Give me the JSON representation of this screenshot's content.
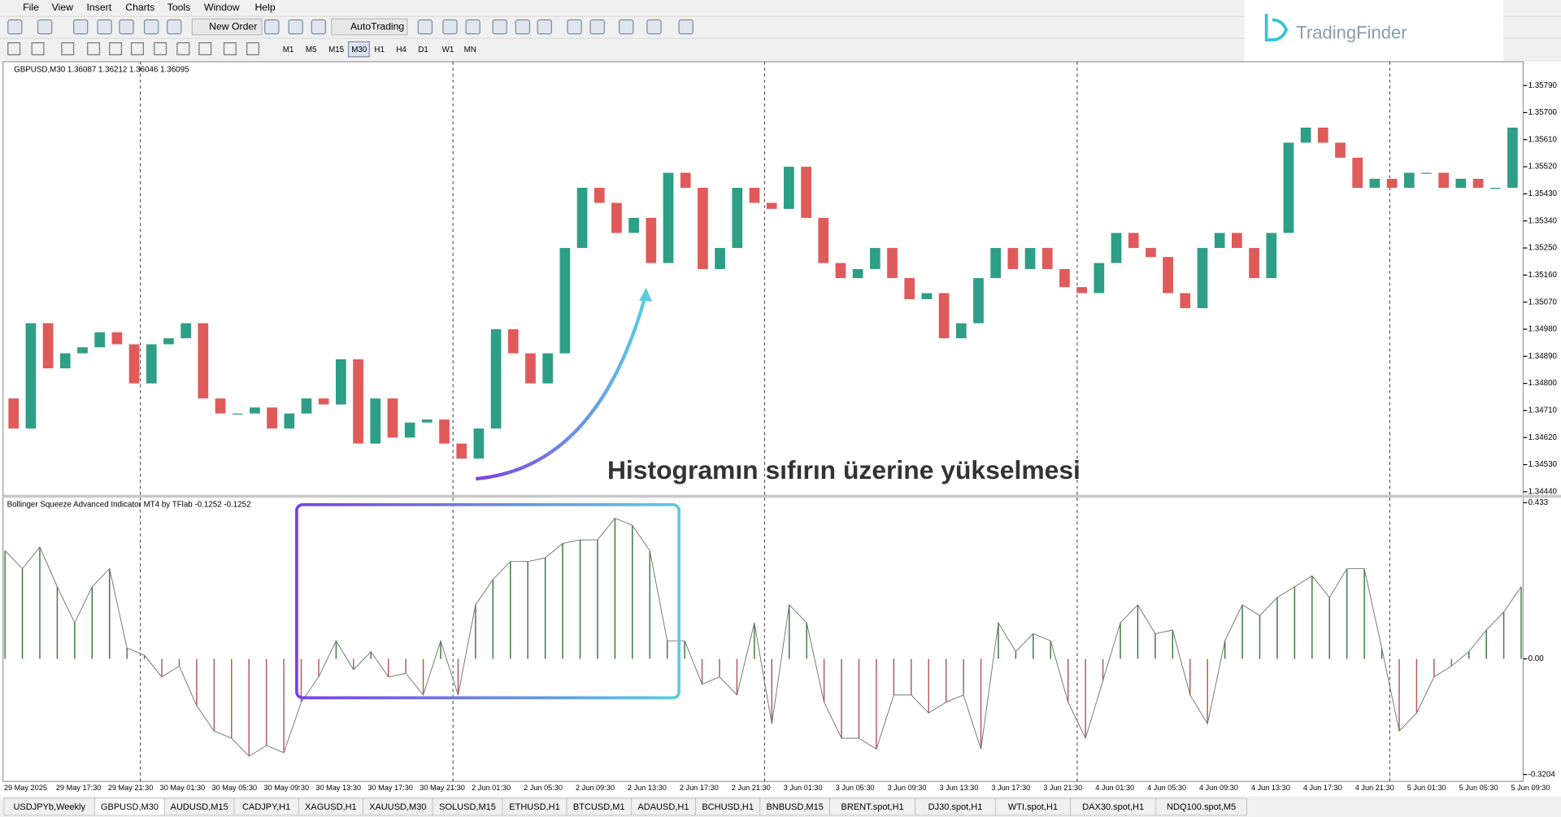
{
  "window": {
    "menu": [
      "File",
      "View",
      "Insert",
      "Charts",
      "Tools",
      "Window",
      "Help"
    ],
    "toolbar": {
      "new_order": "New Order",
      "auto_trading": "AutoTrading",
      "timeframes": [
        "M1",
        "M5",
        "M15",
        "M30",
        "H1",
        "H4",
        "D1",
        "W1",
        "MN"
      ]
    },
    "logo": "TradingFinder"
  },
  "chart_data": [
    {
      "type": "candlestick",
      "title": "GBPUSD,M30  1.36087 1.36212 1.36046 1.36095",
      "values": [
        1.3475,
        1.3465,
        1.35,
        1.3485,
        1.349,
        1.3492,
        1.3497,
        1.3493,
        1.348,
        1.3493,
        1.3495,
        1.35,
        1.3475,
        1.347,
        1.347,
        1.3472,
        1.3465,
        1.347,
        1.3475,
        1.3473,
        1.3488,
        1.346,
        1.3475,
        1.3462,
        1.3467,
        1.3468,
        1.346,
        1.3455,
        1.3465,
        1.3498,
        1.349,
        1.348,
        1.349,
        1.3525,
        1.3545,
        1.354,
        1.353,
        1.3535,
        1.352,
        1.355,
        1.3545,
        1.3518,
        1.3525,
        1.3545,
        1.354,
        1.3538,
        1.3552,
        1.3535,
        1.352,
        1.3515,
        1.3518,
        1.3525,
        1.3515,
        1.3508,
        1.351,
        1.3495,
        1.35,
        1.3515,
        1.3525,
        1.3518,
        1.3525,
        1.3518,
        1.3512,
        1.351,
        1.352,
        1.353,
        1.3525,
        1.3522,
        1.351,
        1.3505,
        1.3525,
        1.353,
        1.3525,
        1.3515,
        1.353,
        1.356,
        1.3565,
        1.356,
        1.3555,
        1.3545,
        1.3548,
        1.3545,
        1.355,
        1.355,
        1.3545,
        1.3548,
        1.3545,
        1.3545,
        1.3565
      ],
      "up_color": "#2e9e86",
      "down_color": "#e05a5a",
      "ylim": [
        1.3443,
        1.35869
      ],
      "yticks": [
        {
          "value": 1.3579,
          "label": "1.35790"
        },
        {
          "value": 1.357,
          "label": "1.35700"
        },
        {
          "value": 1.3561,
          "label": "1.35610"
        },
        {
          "value": 1.3552,
          "label": "1.35520"
        },
        {
          "value": 1.3543,
          "label": "1.35430"
        },
        {
          "value": 1.3534,
          "label": "1.35340"
        },
        {
          "value": 1.3525,
          "label": "1.35250"
        },
        {
          "value": 1.3516,
          "label": "1.35160"
        },
        {
          "value": 1.3507,
          "label": "1.35070"
        },
        {
          "value": 1.3498,
          "label": "1.34980"
        },
        {
          "value": 1.3489,
          "label": "1.34890"
        },
        {
          "value": 1.348,
          "label": "1.34800"
        },
        {
          "value": 1.3471,
          "label": "1.34710"
        },
        {
          "value": 1.3462,
          "label": "1.34620"
        },
        {
          "value": 1.3453,
          "label": "1.34530"
        },
        {
          "value": 1.3444,
          "label": "1.34440"
        }
      ]
    },
    {
      "type": "histogram",
      "title": "Bollinger Squeeze Advanced Indicator MT4 by TFlab -0.1252 -0.1252",
      "values": [
        0.3,
        0.25,
        0.31,
        0.2,
        0.1,
        0.2,
        0.25,
        0.03,
        0.01,
        -0.05,
        -0.02,
        -0.13,
        -0.2,
        -0.22,
        -0.27,
        -0.24,
        -0.26,
        -0.12,
        -0.05,
        0.05,
        -0.03,
        0.02,
        -0.05,
        -0.04,
        -0.1,
        0.05,
        -0.1,
        0.15,
        0.22,
        0.27,
        0.27,
        0.28,
        0.32,
        0.33,
        0.33,
        0.39,
        0.37,
        0.3,
        0.05,
        0.05,
        -0.07,
        -0.05,
        -0.1,
        0.1,
        -0.18,
        0.15,
        0.1,
        -0.12,
        -0.22,
        -0.22,
        -0.25,
        -0.1,
        -0.1,
        -0.15,
        -0.12,
        -0.1,
        -0.25,
        0.1,
        0.02,
        0.07,
        0.05,
        -0.12,
        -0.22,
        -0.06,
        0.1,
        0.15,
        0.07,
        0.08,
        -0.1,
        -0.18,
        0.05,
        0.15,
        0.12,
        0.17,
        0.2,
        0.23,
        0.17,
        0.25,
        0.25,
        0.03,
        -0.2,
        -0.15,
        -0.05,
        -0.02,
        0.02,
        0.08,
        0.13,
        0.2
      ],
      "positive_color": "#3d7a3d",
      "negative_color": "#b05a5a",
      "ylim": [
        -0.3204,
        0.433
      ],
      "yticks": [
        0.433,
        {
          "value": 0,
          "label": "0.00"
        },
        -0.3204
      ]
    }
  ],
  "time_axis": [
    "29 May 2025",
    "29 May 17:30",
    "29 May 21:30",
    "30 May 01:30",
    "30 May 05:30",
    "30 May 09:30",
    "30 May 13:30",
    "30 May 17:30",
    "30 May 21:30",
    "2 Jun 01:30",
    "2 Jun 05:30",
    "2 Jun 09:30",
    "2 Jun 13:30",
    "2 Jun 17:30",
    "2 Jun 21:30",
    "3 Jun 01:30",
    "3 Jun 05:30",
    "3 Jun 09:30",
    "3 Jun 13:30",
    "3 Jun 17:30",
    "3 Jun 21:30",
    "4 Jun 01:30",
    "4 Jun 05:30",
    "4 Jun 09:30",
    "4 Jun 13:30",
    "4 Jun 17:30",
    "4 Jun 21:30",
    "5 Jun 01:30",
    "5 Jun 05:30",
    "5 Jun 09:30"
  ],
  "annotation": "Histogramın sıfırın üzerine yükselmesi",
  "tabs": [
    "USDJPYb,Weekly",
    "GBPUSD,M30",
    "AUDUSD,M15",
    "CADJPY,H1",
    "XAGUSD,H1",
    "XAUUSD,M30",
    "SOLUSD,M15",
    "ETHUSD,H1",
    "BTCUSD,M1",
    "ADAUSD,H1",
    "BCHUSD,H1",
    "BNBUSD,M15",
    "BRENT.spot,H1",
    "DJ30.spot,H1",
    "WTI.spot,H1",
    "DAX30.spot,H1",
    "NDQ100.spot,M5"
  ]
}
